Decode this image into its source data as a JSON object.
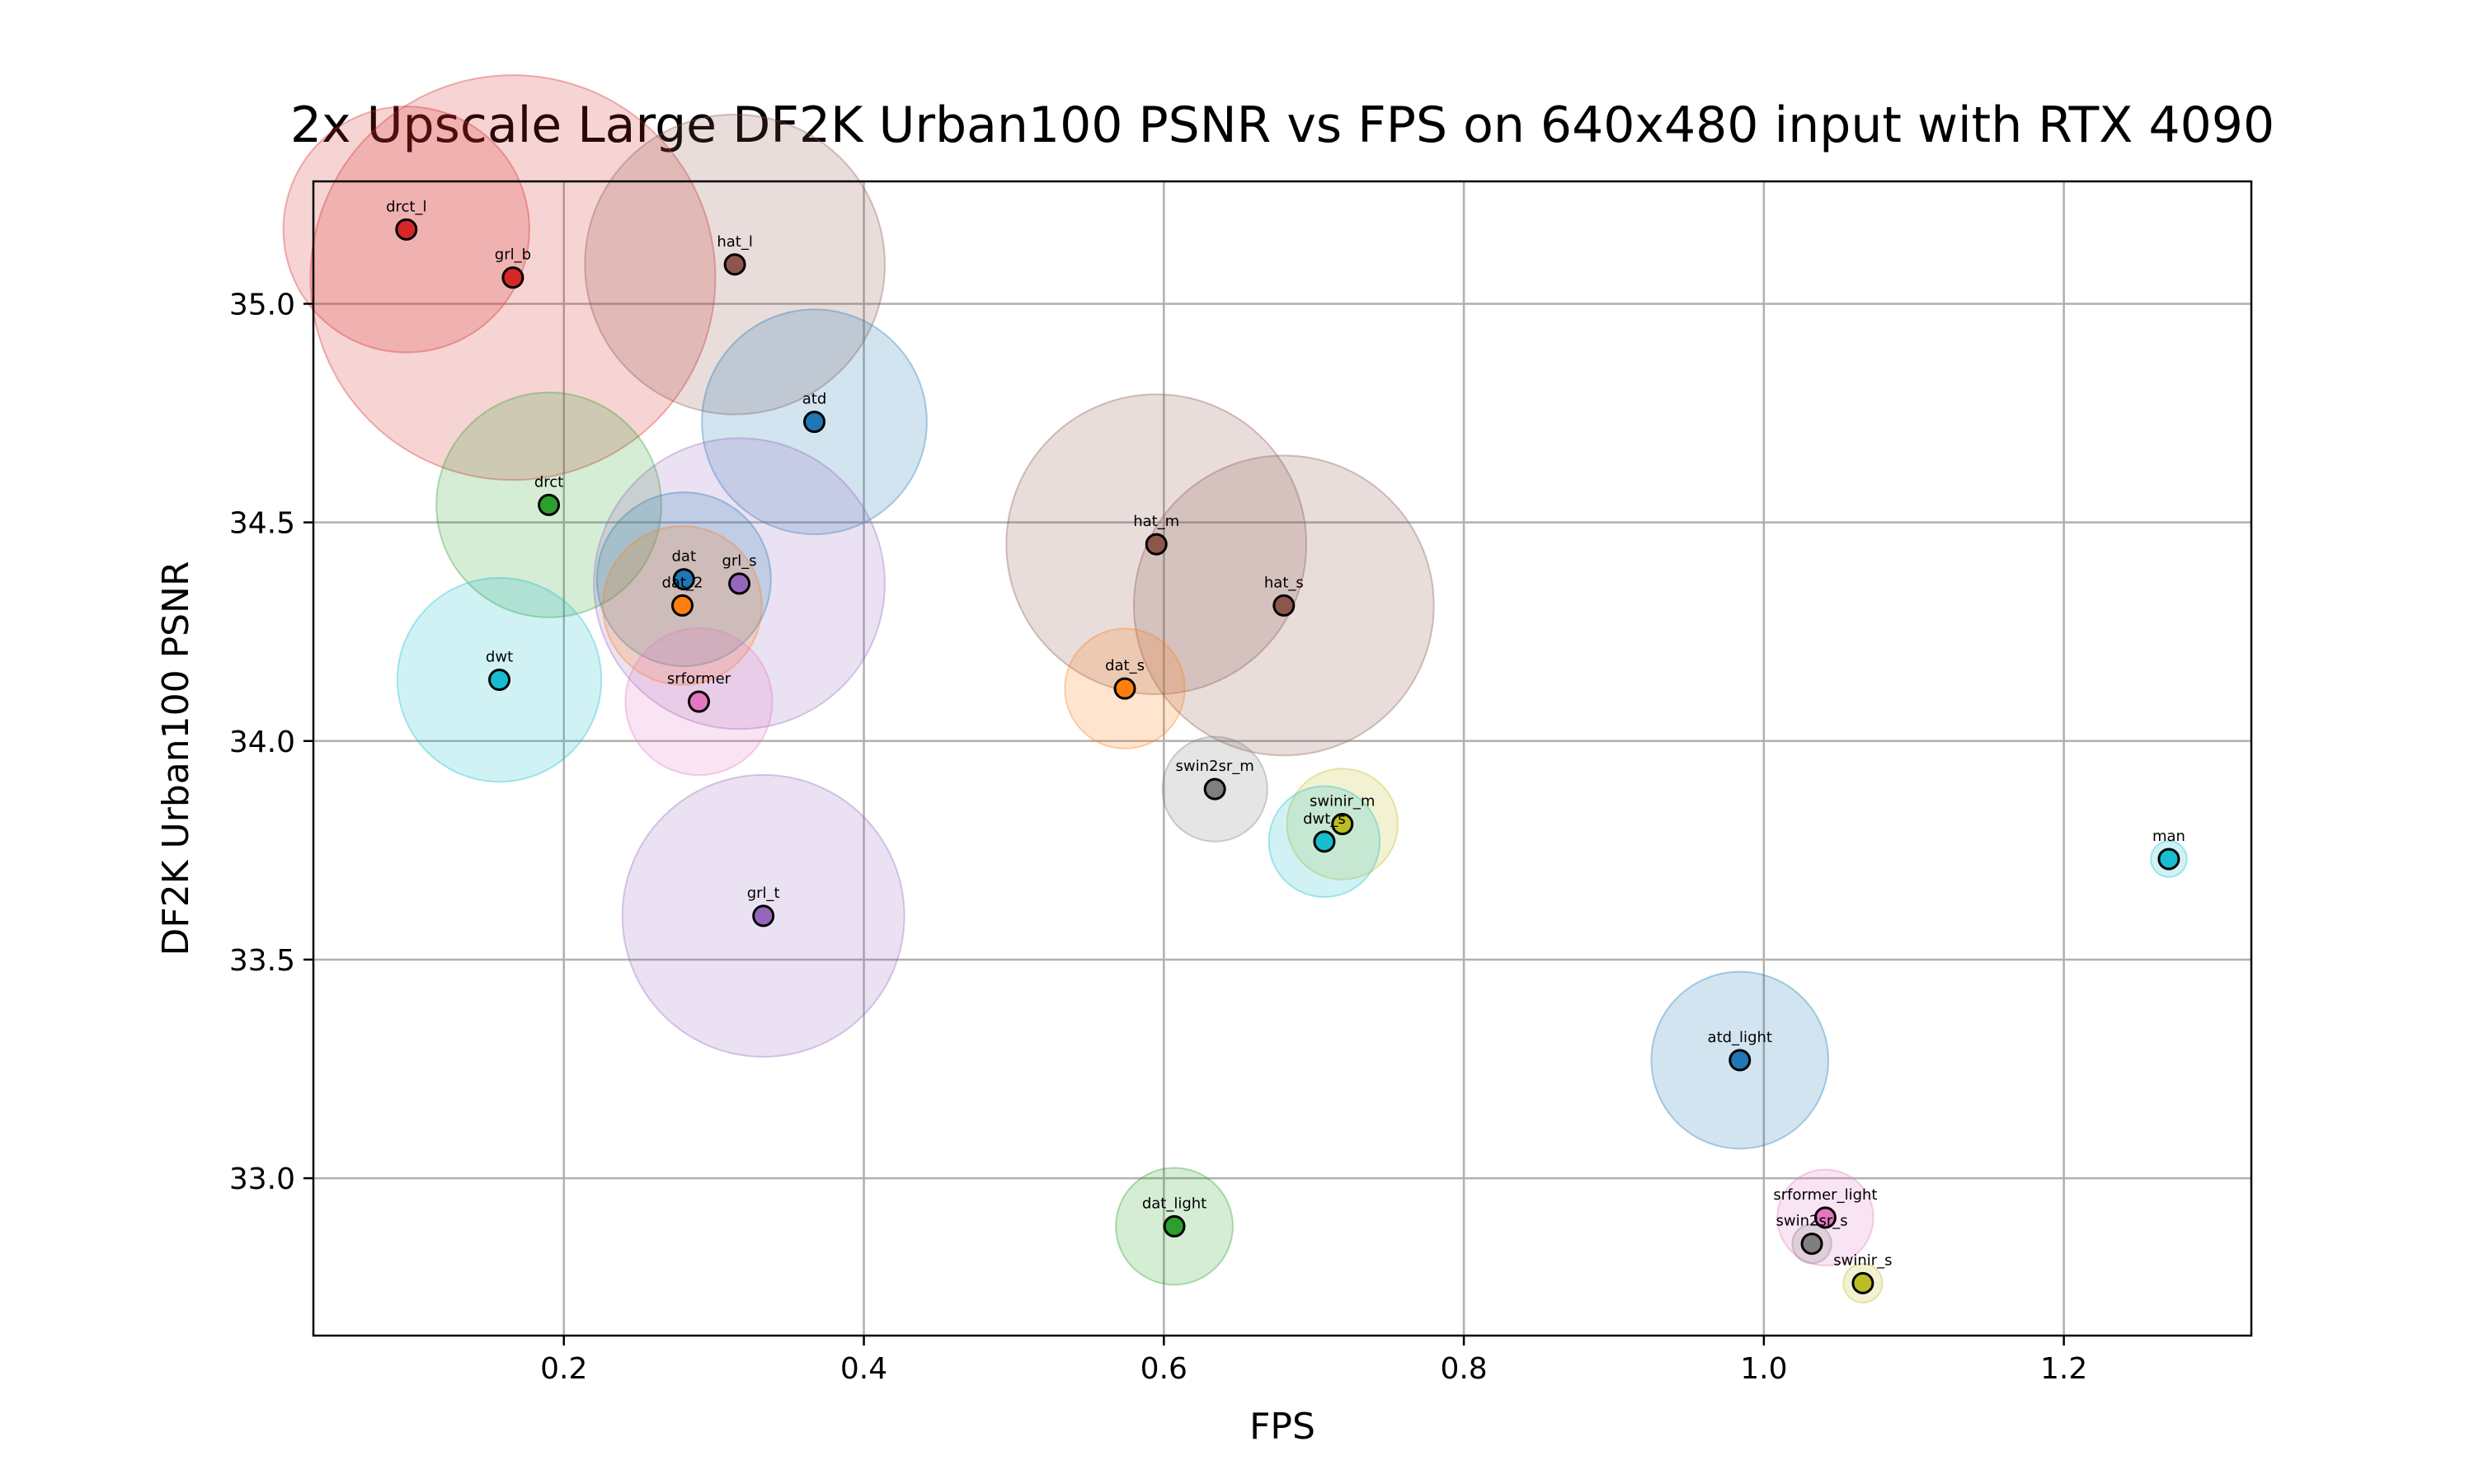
{
  "chart_data": {
    "type": "scatter",
    "title": "2x Upscale Large DF2K Urban100 PSNR vs FPS on 640x480 input with RTX 4090",
    "xlabel": "FPS",
    "ylabel": "DF2K Urban100 PSNR",
    "xlim": [
      0.033,
      1.325
    ],
    "ylim": [
      32.64,
      35.28
    ],
    "xticks": [
      0.2,
      0.4,
      0.6,
      0.8,
      1.0,
      1.2
    ],
    "xtick_labels": [
      "0.2",
      "0.4",
      "0.6",
      "0.8",
      "1.0",
      "1.2"
    ],
    "yticks": [
      33.0,
      33.5,
      34.0,
      34.5,
      35.0
    ],
    "ytick_labels": [
      "33.0",
      "33.5",
      "34.0",
      "34.5",
      "35.0"
    ],
    "grid": true,
    "legend": "none",
    "bubble_size_note": "",
    "points": [
      {
        "label": "drct_l",
        "x": 0.095,
        "y": 35.17,
        "size": 0.082,
        "color": "#d62728"
      },
      {
        "label": "grl_b",
        "x": 0.166,
        "y": 35.06,
        "size": 0.135,
        "color": "#d62728"
      },
      {
        "label": "hat_l",
        "x": 0.314,
        "y": 35.09,
        "size": 0.1,
        "color": "#8c564b"
      },
      {
        "label": "atd",
        "x": 0.367,
        "y": 34.73,
        "size": 0.075,
        "color": "#1f77b4"
      },
      {
        "label": "drct",
        "x": 0.19,
        "y": 34.54,
        "size": 0.075,
        "color": "#2ca02c"
      },
      {
        "label": "grl_s",
        "x": 0.317,
        "y": 34.36,
        "size": 0.097,
        "color": "#9467bd"
      },
      {
        "label": "dat",
        "x": 0.28,
        "y": 34.37,
        "size": 0.058,
        "color": "#1f77b4"
      },
      {
        "label": "dat_2",
        "x": 0.279,
        "y": 34.31,
        "size": 0.053,
        "color": "#ff7f0e"
      },
      {
        "label": "dwt",
        "x": 0.157,
        "y": 34.14,
        "size": 0.068,
        "color": "#17becf"
      },
      {
        "label": "srformer",
        "x": 0.29,
        "y": 34.09,
        "size": 0.049,
        "color": "#e377c2"
      },
      {
        "label": "grl_t",
        "x": 0.333,
        "y": 33.6,
        "size": 0.094,
        "color": "#9467bd"
      },
      {
        "label": "hat_m",
        "x": 0.595,
        "y": 34.45,
        "size": 0.1,
        "color": "#8c564b"
      },
      {
        "label": "hat_s",
        "x": 0.68,
        "y": 34.31,
        "size": 0.1,
        "color": "#8c564b"
      },
      {
        "label": "dat_s",
        "x": 0.574,
        "y": 34.12,
        "size": 0.04,
        "color": "#ff7f0e"
      },
      {
        "label": "swin2sr_m",
        "x": 0.634,
        "y": 33.89,
        "size": 0.035,
        "color": "#7f7f7f"
      },
      {
        "label": "swinir_m",
        "x": 0.719,
        "y": 33.81,
        "size": 0.037,
        "color": "#bcbd22"
      },
      {
        "label": "dwt_s",
        "x": 0.707,
        "y": 33.77,
        "size": 0.037,
        "color": "#17becf"
      },
      {
        "label": "man",
        "x": 1.27,
        "y": 33.73,
        "size": 0.012,
        "color": "#17becf"
      },
      {
        "label": "atd_light",
        "x": 0.984,
        "y": 33.27,
        "size": 0.059,
        "color": "#1f77b4"
      },
      {
        "label": "dat_light",
        "x": 0.607,
        "y": 32.89,
        "size": 0.039,
        "color": "#2ca02c"
      },
      {
        "label": "srformer_light",
        "x": 1.041,
        "y": 32.91,
        "size": 0.032,
        "color": "#e377c2"
      },
      {
        "label": "swin2sr_s",
        "x": 1.032,
        "y": 32.85,
        "size": 0.013,
        "color": "#7f7f7f"
      },
      {
        "label": "swinir_s",
        "x": 1.066,
        "y": 32.76,
        "size": 0.013,
        "color": "#bcbd22"
      }
    ]
  }
}
